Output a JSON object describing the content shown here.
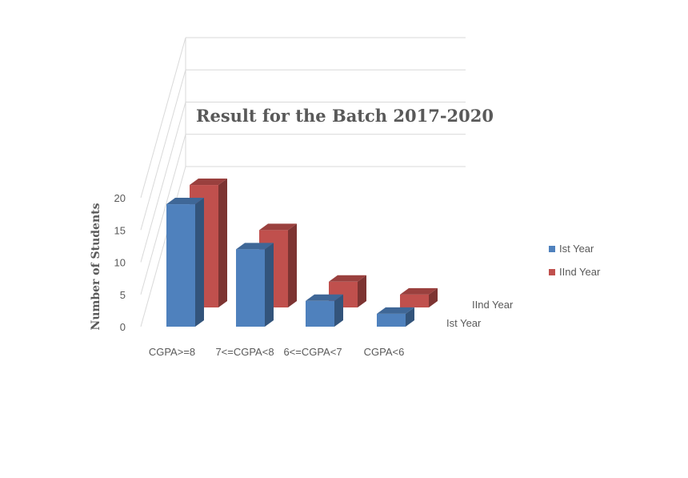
{
  "chart_data": {
    "type": "bar",
    "title": "Result for the  Batch 2017-2020",
    "ylabel": "Number of Students",
    "xlabel": "",
    "ylim": [
      0,
      20
    ],
    "yticks": [
      0,
      5,
      10,
      15,
      20
    ],
    "categories": [
      "CGPA>=8",
      "7<=CGPA<8",
      "6<=CGPA<7",
      "CGPA<6"
    ],
    "series": [
      {
        "name": "Ist Year",
        "values": [
          19,
          12,
          4,
          2
        ],
        "color": "#4f81bd"
      },
      {
        "name": "IInd Year",
        "values": [
          19,
          12,
          4,
          2
        ],
        "color": "#c0504d"
      }
    ],
    "depth_labels": [
      "IInd Year",
      "Ist Year"
    ],
    "legend_position": "right",
    "grid": true,
    "style": "3d-column"
  }
}
